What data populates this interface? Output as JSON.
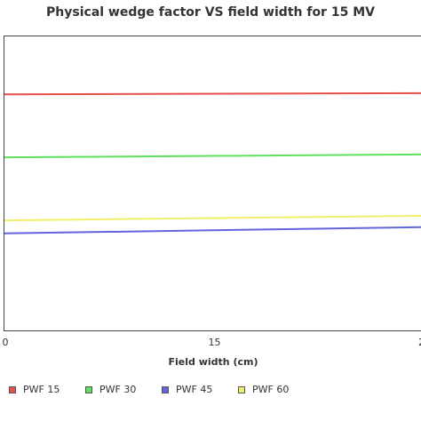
{
  "chart_data": {
    "type": "line",
    "title": "Physical wedge factor VS field width  for 15 MV",
    "xlabel": "Field width (cm)",
    "ylabel": "",
    "x_ticks": [
      "0",
      "15",
      "2"
    ],
    "xlim": [
      0,
      30
    ],
    "grid": false,
    "legend_position": "bottom",
    "x": [
      0,
      30
    ],
    "series": [
      {
        "name": "PWF 15",
        "color": "#e8504a",
        "values": [
          0.812,
          0.815
        ]
      },
      {
        "name": "PWF 30",
        "color": "#5fe05f",
        "values": [
          0.662,
          0.669
        ]
      },
      {
        "name": "PWF 45",
        "color": "#6464dc",
        "values": [
          0.481,
          0.496
        ]
      },
      {
        "name": "PWF 60",
        "color": "#f2f06a",
        "values": [
          0.512,
          0.523
        ]
      }
    ]
  }
}
